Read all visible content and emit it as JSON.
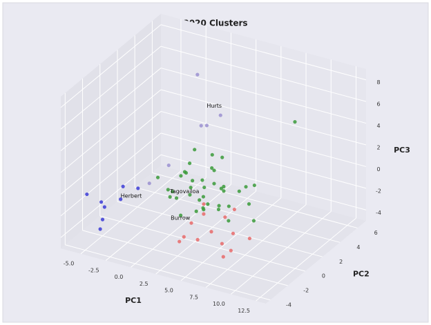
{
  "chart_data": {
    "type": "scatter3d",
    "title": "2020 Clusters",
    "xlabel": "PC1",
    "ylabel": "PC2",
    "zlabel": "PC3",
    "xlim": [
      -7,
      13.5
    ],
    "ylim": [
      -4.5,
      7
    ],
    "zlim": [
      -5,
      9
    ],
    "xticks": [
      {
        "value": -5,
        "label": "-5.0"
      },
      {
        "value": -2.5,
        "label": "-2.5"
      },
      {
        "value": 0,
        "label": "0.0"
      },
      {
        "value": 2.5,
        "label": "2.5"
      },
      {
        "value": 5,
        "label": "5.0"
      },
      {
        "value": 7.5,
        "label": "7.5"
      },
      {
        "value": 10,
        "label": "10.0"
      },
      {
        "value": 12.5,
        "label": "12.5"
      }
    ],
    "yticks": [
      -4,
      -2,
      0,
      2,
      4,
      6
    ],
    "zticks": [
      -4,
      -2,
      0,
      2,
      4,
      6,
      8
    ],
    "grid": true,
    "series": [
      {
        "color": "#3a9a3a",
        "x": [
          1.2,
          2.5,
          3.1,
          0.5,
          -0.8,
          4.2,
          2.0,
          1.5,
          3.8,
          5.0,
          0.0,
          -1.5,
          2.8,
          4.5,
          6.0,
          1.0,
          3.3,
          2.2,
          -0.3,
          5.5,
          4.0,
          1.8,
          0.8,
          3.6,
          2.4,
          6.5,
          -2.0,
          1.4,
          2.9,
          4.8,
          0.3,
          3.0,
          5.2,
          7.5,
          -1.0,
          2.6,
          9.0,
          1.9,
          4.4,
          0.6
        ],
        "y": [
          1.0,
          0.5,
          1.5,
          2.0,
          1.2,
          0.8,
          2.5,
          -0.5,
          1.8,
          2.2,
          0.0,
          1.5,
          -0.2,
          1.0,
          2.8,
          0.7,
          2.2,
          1.3,
          2.6,
          0.4,
          -0.8,
          3.0,
          1.9,
          0.2,
          1.1,
          1.6,
          0.9,
          2.1,
          0.6,
          3.2,
          0.4,
          1.4,
          -0.4,
          1.0,
          2.4,
          2.9,
          4.0,
          0.1,
          1.7,
          1.0
        ],
        "z": [
          -1.0,
          -1.5,
          -0.5,
          -1.2,
          -2.0,
          -1.8,
          0.0,
          -2.5,
          -0.8,
          -1.2,
          -1.5,
          -2.2,
          -2.0,
          -0.5,
          -0.8,
          0.5,
          1.5,
          -1.8,
          -0.2,
          -2.6,
          -1.0,
          -0.6,
          1.8,
          -1.4,
          -2.8,
          -1.6,
          -0.8,
          -1.0,
          -0.3,
          -1.5,
          -1.8,
          2.2,
          -1.1,
          -2.5,
          -1.4,
          -2.0,
          5.0,
          -0.9,
          -2.4,
          0.3
        ]
      },
      {
        "color": "#e86a6a",
        "x": [
          3.0,
          4.5,
          5.5,
          6.5,
          3.8,
          7.5,
          2.5,
          5.0,
          8.0,
          6.0,
          4.0,
          3.2,
          7.0,
          9.0
        ],
        "y": [
          -1.0,
          -2.0,
          0.0,
          -1.5,
          -0.5,
          -2.5,
          -1.8,
          -1.0,
          -2.2,
          0.5,
          -3.0,
          0.2,
          -0.8,
          -1.2
        ],
        "z": [
          -2.5,
          -3.0,
          -2.0,
          -3.2,
          -1.8,
          -3.5,
          -3.8,
          -2.8,
          -3.0,
          -1.5,
          -2.2,
          -1.5,
          -2.6,
          -2.3
        ]
      },
      {
        "color": "#3b3bd6",
        "x": [
          -7.0,
          -5.5,
          -4.5,
          -5.0,
          -4.0,
          -3.2,
          -6.0,
          -4.8
        ],
        "y": [
          -1.5,
          -1.2,
          -0.5,
          -2.0,
          -0.8,
          0.0,
          -1.0,
          -2.5
        ],
        "z": [
          -2.0,
          -3.0,
          -2.5,
          -3.5,
          -1.0,
          -1.5,
          -2.8,
          -4.0
        ]
      },
      {
        "color": "#9a8fd0",
        "x": [
          1.0,
          1.5,
          -1.0,
          0.5,
          -2.5,
          2.0
        ],
        "y": [
          2.0,
          2.5,
          1.0,
          3.0,
          0.5,
          3.5
        ],
        "z": [
          8.7,
          3.8,
          0.5,
          3.2,
          -1.2,
          4.2
        ]
      }
    ],
    "annotations": [
      {
        "text": "Hurts",
        "x": 1.5,
        "y": 2.5,
        "z": 5.6
      },
      {
        "text": "Tagovailoa",
        "x": 0.0,
        "y": 0.0,
        "z": -1.0
      },
      {
        "text": "Herbert",
        "x": -4.5,
        "y": -0.5,
        "z": -2.2
      },
      {
        "text": "Burrow",
        "x": 0.5,
        "y": -0.5,
        "z": -3.0
      }
    ]
  }
}
